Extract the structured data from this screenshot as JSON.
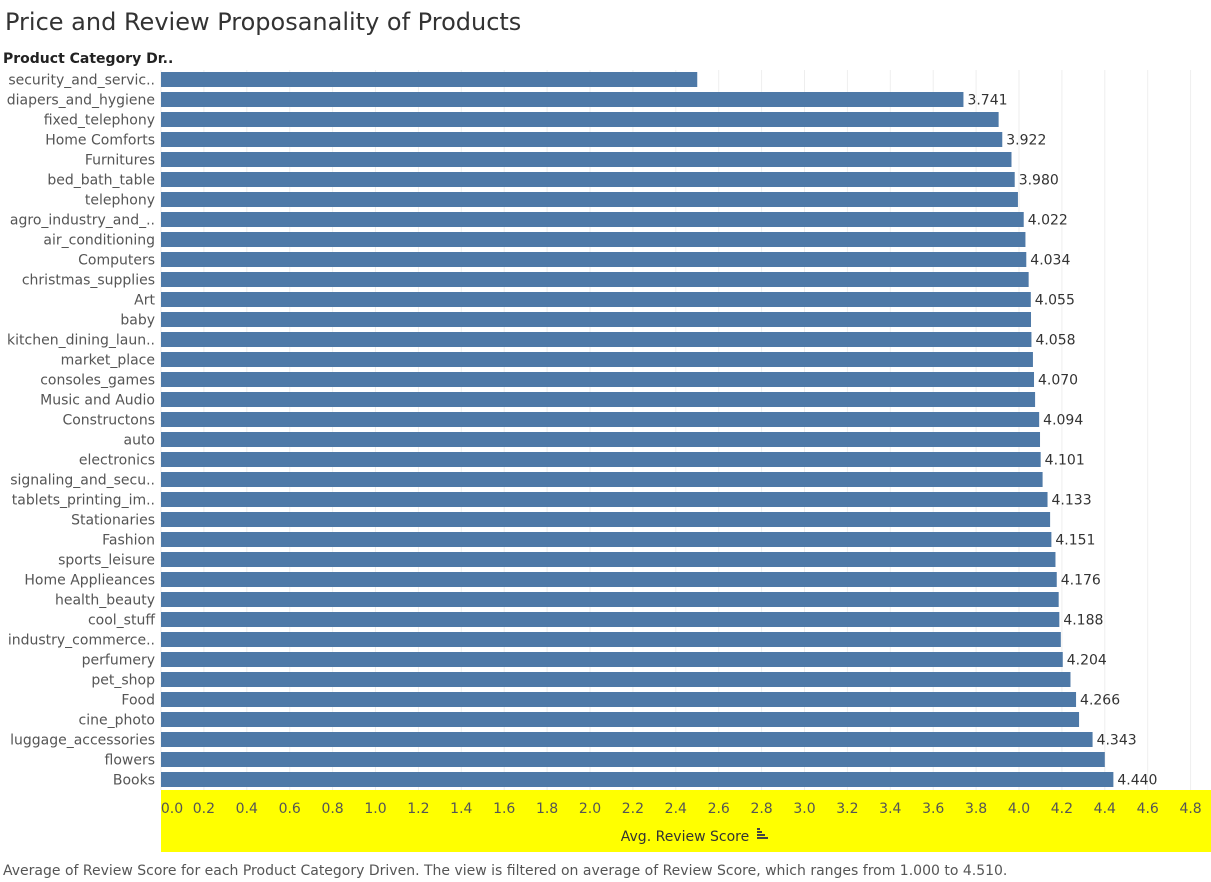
{
  "title": "Price and Review Proposanality of Products",
  "row_header": "Product Category Dr..",
  "caption": "Average of Review Score for each Product Category Driven. The view is filtered on average of Review Score, which ranges from 1.000 to 4.510.",
  "colors": {
    "bar": "#4e79a7",
    "axis_band": "#ffff00",
    "axis_text": "#444444",
    "grid": "#eeeeee"
  },
  "chart_data": {
    "type": "bar",
    "orientation": "horizontal",
    "xlabel": "Avg. Review Score",
    "xlim": [
      0.0,
      4.9
    ],
    "xticks": [
      "0.0",
      "0.2",
      "0.4",
      "0.6",
      "0.8",
      "1.0",
      "1.2",
      "1.4",
      "1.6",
      "1.8",
      "2.0",
      "2.2",
      "2.4",
      "2.6",
      "2.8",
      "3.0",
      "3.2",
      "3.4",
      "3.6",
      "3.8",
      "4.0",
      "4.2",
      "4.4",
      "4.6",
      "4.8"
    ],
    "grid": true,
    "sort_icon": "sort-ascending-icon",
    "categories": [
      "security_and_servic..",
      "diapers_and_hygiene",
      "fixed_telephony",
      "Home Comforts",
      "Furnitures",
      "bed_bath_table",
      "telephony",
      "agro_industry_and_..",
      "air_conditioning",
      "Computers",
      "christmas_supplies",
      "Art",
      "baby",
      "kitchen_dining_laun..",
      "market_place",
      "consoles_games",
      "Music and Audio",
      "Constructons",
      "auto",
      "electronics",
      "signaling_and_secu..",
      "tablets_printing_im..",
      "Stationaries",
      "Fashion",
      "sports_leisure",
      "Home Applieances",
      "health_beauty",
      "cool_stuff",
      "industry_commerce..",
      "perfumery",
      "pet_shop",
      "Food",
      "cine_photo",
      "luggage_accessories",
      "flowers",
      "Books"
    ],
    "values": [
      2.5,
      3.741,
      3.905,
      3.922,
      3.965,
      3.98,
      3.995,
      4.022,
      4.03,
      4.034,
      4.045,
      4.055,
      4.056,
      4.058,
      4.065,
      4.07,
      4.075,
      4.094,
      4.098,
      4.101,
      4.11,
      4.133,
      4.145,
      4.151,
      4.17,
      4.176,
      4.185,
      4.188,
      4.195,
      4.204,
      4.24,
      4.266,
      4.28,
      4.343,
      4.4,
      4.44
    ],
    "data_labels": [
      "",
      "3.741",
      "",
      "3.922",
      "",
      "3.980",
      "",
      "4.022",
      "",
      "4.034",
      "",
      "4.055",
      "",
      "4.058",
      "",
      "4.070",
      "",
      "4.094",
      "",
      "4.101",
      "",
      "4.133",
      "",
      "4.151",
      "",
      "4.176",
      "",
      "4.188",
      "",
      "4.204",
      "",
      "4.266",
      "",
      "4.343",
      "",
      "4.440"
    ]
  }
}
